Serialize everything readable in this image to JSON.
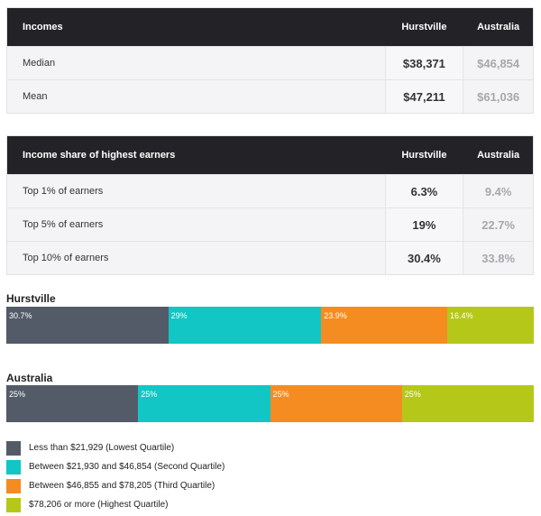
{
  "incomes_table": {
    "headers": [
      "Incomes",
      "Hurstville",
      "Australia"
    ],
    "rows": [
      {
        "label": "Median",
        "hurstville": "$38,371",
        "australia": "$46,854"
      },
      {
        "label": "Mean",
        "hurstville": "$47,211",
        "australia": "$61,036"
      }
    ]
  },
  "share_table": {
    "headers": [
      "Income share of highest earners",
      "Hurstville",
      "Australia"
    ],
    "rows": [
      {
        "label": "Top 1% of earners",
        "hurstville": "6.3%",
        "australia": "9.4%"
      },
      {
        "label": "Top 5% of earners",
        "hurstville": "19%",
        "australia": "22.7%"
      },
      {
        "label": "Top 10% of earners",
        "hurstville": "30.4%",
        "australia": "33.8%"
      }
    ]
  },
  "colors": {
    "q1": "#545b68",
    "q2": "#11c6c4",
    "q3": "#f48c22",
    "q4": "#b5c81a"
  },
  "chart_data": {
    "type": "bar",
    "orientation": "horizontal-stacked",
    "categories": [
      "Hurstville",
      "Australia"
    ],
    "series": [
      {
        "name": "Less than $21,929 (Lowest Quartile)",
        "values": [
          30.7,
          25
        ],
        "labels": [
          "30.7%",
          "25%"
        ],
        "color": "#545b68"
      },
      {
        "name": "Between $21,930 and $46,854 (Second Quartile)",
        "values": [
          29,
          25
        ],
        "labels": [
          "29%",
          "25%"
        ],
        "color": "#11c6c4"
      },
      {
        "name": "Between $46,855 and $78,205 (Third Quartile)",
        "values": [
          23.9,
          25
        ],
        "labels": [
          "23.9%",
          "25%"
        ],
        "color": "#f48c22"
      },
      {
        "name": "$78,206 or more (Highest Quartile)",
        "values": [
          16.4,
          25
        ],
        "labels": [
          "16.4%",
          "25%"
        ],
        "color": "#b5c81a"
      }
    ],
    "legend_placement": "bottom"
  }
}
